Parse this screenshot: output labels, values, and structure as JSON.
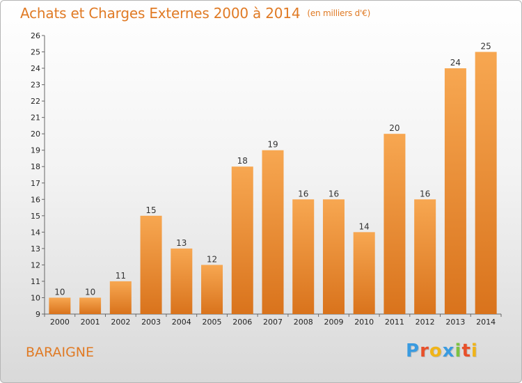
{
  "header": {
    "title": "Achats et Charges Externes 2000 à 2014",
    "unit": "(en milliers d'€)"
  },
  "footer": {
    "place": "BARAIGNE",
    "logo": "Proxiti",
    "logo_colors": [
      "#3a9be0",
      "#e8502a",
      "#f0b418",
      "#3a9be0",
      "#7cc242",
      "#e8502a",
      "#f0b418"
    ]
  },
  "colors": {
    "accent": "#e07a24",
    "bar_top": "#f7a751",
    "bar_bottom": "#d9731c"
  },
  "chart_data": {
    "type": "bar",
    "title": "Achats et Charges Externes 2000 à 2014",
    "subtitle": "(en milliers d'€)",
    "xlabel": "",
    "ylabel": "",
    "categories": [
      "2000",
      "2001",
      "2002",
      "2003",
      "2004",
      "2005",
      "2006",
      "2007",
      "2008",
      "2009",
      "2010",
      "2011",
      "2012",
      "2013",
      "2014"
    ],
    "values": [
      10,
      10,
      11,
      15,
      13,
      12,
      18,
      19,
      16,
      16,
      14,
      20,
      16,
      24,
      25
    ],
    "ylim": [
      9,
      26
    ],
    "yticks": [
      9,
      10,
      11,
      12,
      13,
      14,
      15,
      16,
      17,
      18,
      19,
      20,
      21,
      22,
      23,
      24,
      25,
      26
    ],
    "grid": false,
    "data_labels": true
  }
}
